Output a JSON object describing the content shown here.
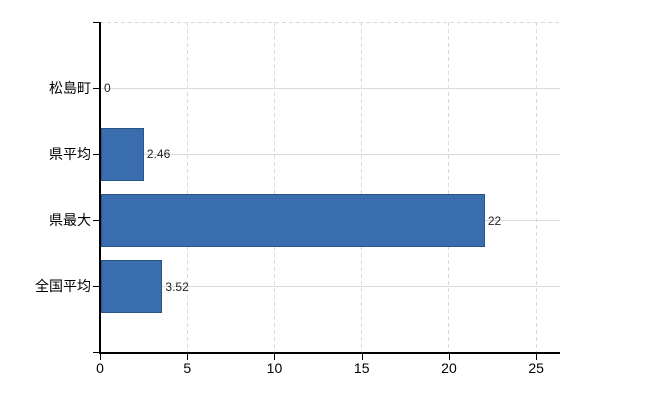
{
  "chart_data": {
    "type": "bar",
    "orientation": "horizontal",
    "title": "",
    "xlabel": "",
    "ylabel": "",
    "categories": [
      "松島町",
      "県平均",
      "県最大",
      "全国平均"
    ],
    "values": [
      0,
      2.46,
      22,
      3.52
    ],
    "value_labels": [
      "0",
      "2.46",
      "22",
      "3.52"
    ],
    "xlim": [
      0,
      25
    ],
    "x_ticks": [
      0,
      5,
      10,
      15,
      20,
      25
    ],
    "x_tick_labels": [
      "0",
      "5",
      "10",
      "15",
      "20",
      "25"
    ],
    "grid": true,
    "legend_position": "none",
    "colors": {
      "bar_fill": "#3a6dad",
      "bar_border": "#2a5387",
      "gridline": "#d9d9d9",
      "axis": "#000000",
      "text": "#000000",
      "value_text": "#222222",
      "background": "#ffffff"
    }
  }
}
